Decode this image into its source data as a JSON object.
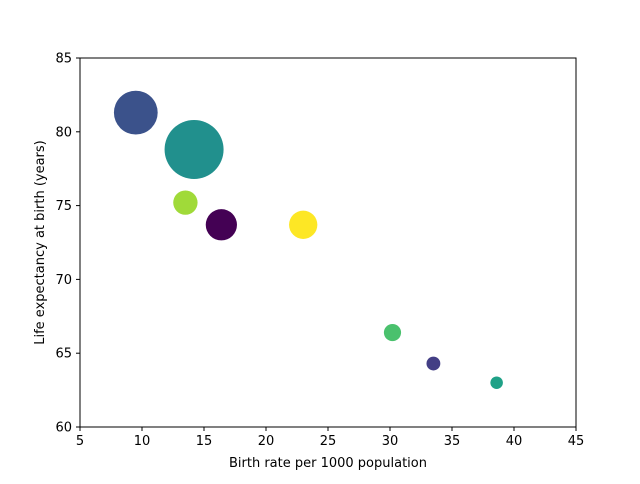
{
  "chart_data": {
    "type": "scatter",
    "title": "",
    "xlabel": "Birth rate per 1000 population",
    "ylabel": "Life expectancy at birth (years)",
    "xlim": [
      5,
      45
    ],
    "ylim": [
      60,
      85
    ],
    "xticks": [
      5,
      10,
      15,
      20,
      25,
      30,
      35,
      40,
      45
    ],
    "yticks": [
      60,
      65,
      70,
      75,
      80,
      85
    ],
    "grid": false,
    "legend": "none",
    "colormap": "viridis",
    "points": [
      {
        "x": 9.5,
        "y": 81.3,
        "size": 0.55,
        "color": "#3b528b"
      },
      {
        "x": 14.2,
        "y": 78.8,
        "size": 1.0,
        "color": "#21908d"
      },
      {
        "x": 13.5,
        "y": 75.2,
        "size": 0.17,
        "color": "#a0da39"
      },
      {
        "x": 16.4,
        "y": 73.7,
        "size": 0.28,
        "color": "#440154"
      },
      {
        "x": 23.0,
        "y": 73.7,
        "size": 0.23,
        "color": "#fde725"
      },
      {
        "x": 30.2,
        "y": 66.4,
        "size": 0.085,
        "color": "#4ac16d"
      },
      {
        "x": 33.5,
        "y": 64.3,
        "size": 0.055,
        "color": "#433e85"
      },
      {
        "x": 38.6,
        "y": 63.0,
        "size": 0.045,
        "color": "#1fa187"
      }
    ]
  }
}
